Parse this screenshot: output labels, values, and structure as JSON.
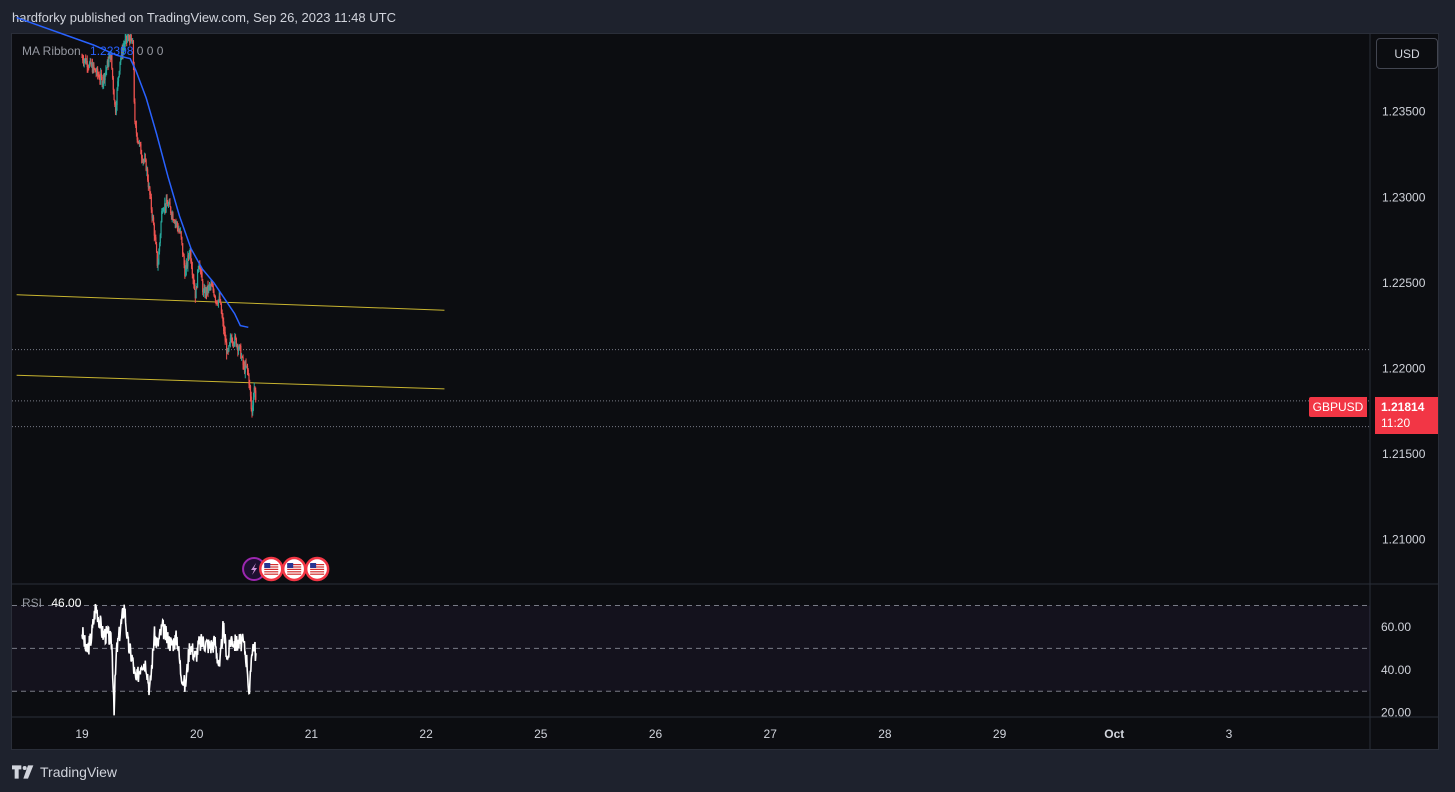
{
  "header": {
    "published": "hardforky published on TradingView.com, Sep 26, 2023 11:48 UTC"
  },
  "toolbar": {
    "currency": "USD"
  },
  "legend": {
    "ma_name": "MA Ribbon",
    "ma_value": "1.22398",
    "ma_extra": "0  0  0",
    "rsi_name": "RSI",
    "rsi_value": "46.00"
  },
  "symbol": {
    "name": "GBPUSD",
    "last_price": "1.21814",
    "countdown": "11:20"
  },
  "footer": {
    "brand": "TradingView"
  },
  "colors": {
    "up": "#26a69a",
    "down": "#ef5350",
    "ma": "#2962ff",
    "trend": "#c8b430",
    "badge": "#f23645"
  },
  "chart_data": {
    "type": "candlestick",
    "price_axis": {
      "ticks": [
        "1.23500",
        "1.23000",
        "1.22500",
        "1.22000",
        "1.21500",
        "1.21000"
      ],
      "ylim": [
        1.2074,
        1.2396
      ]
    },
    "rsi_axis": {
      "ticks": [
        "60.00",
        "40.00",
        "20.00"
      ],
      "levels": [
        70,
        50,
        30
      ],
      "ylim": [
        18,
        80
      ]
    },
    "time_axis": {
      "labels": [
        "19",
        "20",
        "21",
        "22",
        "25",
        "26",
        "27",
        "28",
        "29",
        "Oct",
        "3"
      ],
      "bold": [
        "Oct"
      ]
    },
    "price_path": [
      [
        0,
        1.2382
      ],
      [
        0.1,
        1.2375
      ],
      [
        0.18,
        1.2368
      ],
      [
        0.25,
        1.2384
      ],
      [
        0.29,
        1.235
      ],
      [
        0.33,
        1.238
      ],
      [
        0.37,
        1.239
      ],
      [
        0.41,
        1.2394
      ],
      [
        0.445,
        1.2388
      ],
      [
        0.46,
        1.2342
      ],
      [
        0.52,
        1.2325
      ],
      [
        0.56,
        1.2318
      ],
      [
        0.63,
        1.228
      ],
      [
        0.66,
        1.2259
      ],
      [
        0.7,
        1.2295
      ],
      [
        0.75,
        1.2296
      ],
      [
        0.82,
        1.2285
      ],
      [
        0.86,
        1.2278
      ],
      [
        0.9,
        1.2255
      ],
      [
        0.94,
        1.227
      ],
      [
        0.99,
        1.2242
      ],
      [
        1.02,
        1.2264
      ],
      [
        1.06,
        1.2243
      ],
      [
        1.12,
        1.2248
      ],
      [
        1.15,
        1.2245
      ],
      [
        1.17,
        1.224
      ],
      [
        1.2,
        1.224
      ],
      [
        1.23,
        1.2225
      ],
      [
        1.27,
        1.2207
      ],
      [
        1.3,
        1.2218
      ],
      [
        1.34,
        1.2216
      ],
      [
        1.38,
        1.221
      ],
      [
        1.41,
        1.22
      ],
      [
        1.44,
        1.22
      ],
      [
        1.46,
        1.2191
      ],
      [
        1.48,
        1.2172
      ],
      [
        1.5,
        1.219
      ],
      [
        1.52,
        1.2181
      ]
    ],
    "ma_series": [
      [
        -0.57,
        1.2405
      ],
      [
        0.1,
        1.2389
      ],
      [
        0.3,
        1.2383
      ],
      [
        0.42,
        1.2381
      ],
      [
        0.47,
        1.2374
      ],
      [
        0.56,
        1.2358
      ],
      [
        0.65,
        1.2337
      ],
      [
        0.75,
        1.2312
      ],
      [
        0.85,
        1.2289
      ],
      [
        0.95,
        1.227
      ],
      [
        1.05,
        1.2258
      ],
      [
        1.15,
        1.225
      ],
      [
        1.25,
        1.224
      ],
      [
        1.33,
        1.2232
      ],
      [
        1.38,
        1.2225
      ],
      [
        1.45,
        1.2224
      ]
    ],
    "trendlines": [
      [
        [
          -0.57,
          1.2243
        ],
        [
          3.16,
          1.2234
        ]
      ],
      [
        [
          -0.57,
          1.2196
        ],
        [
          3.16,
          1.2188
        ]
      ]
    ],
    "h_levels": [
      1.2211,
      1.2181,
      1.2166
    ],
    "rsi_path": [
      [
        0,
        58
      ],
      [
        0.04,
        48
      ],
      [
        0.08,
        55
      ],
      [
        0.12,
        70
      ],
      [
        0.18,
        57
      ],
      [
        0.23,
        56
      ],
      [
        0.26,
        52
      ],
      [
        0.28,
        23
      ],
      [
        0.3,
        48
      ],
      [
        0.33,
        58
      ],
      [
        0.37,
        70
      ],
      [
        0.4,
        52
      ],
      [
        0.44,
        45
      ],
      [
        0.47,
        34
      ],
      [
        0.52,
        44
      ],
      [
        0.56,
        43
      ],
      [
        0.59,
        30
      ],
      [
        0.63,
        56
      ],
      [
        0.66,
        52
      ],
      [
        0.7,
        60
      ],
      [
        0.74,
        55
      ],
      [
        0.78,
        52
      ],
      [
        0.83,
        55
      ],
      [
        0.86,
        40
      ],
      [
        0.9,
        32
      ],
      [
        0.94,
        52
      ],
      [
        0.99,
        46
      ],
      [
        1.02,
        52
      ],
      [
        1.06,
        53
      ],
      [
        1.12,
        51
      ],
      [
        1.16,
        53
      ],
      [
        1.2,
        40
      ],
      [
        1.23,
        60
      ],
      [
        1.27,
        45
      ],
      [
        1.3,
        55
      ],
      [
        1.34,
        52
      ],
      [
        1.38,
        53
      ],
      [
        1.41,
        52
      ],
      [
        1.44,
        43
      ],
      [
        1.46,
        26
      ],
      [
        1.48,
        50
      ],
      [
        1.5,
        52
      ],
      [
        1.52,
        46
      ]
    ],
    "events": [
      {
        "x": 1.5,
        "icon": "lightning-icon"
      },
      {
        "x": 1.65,
        "icon": "us-flag-icon"
      },
      {
        "x": 1.85,
        "icon": "us-flag-icon"
      },
      {
        "x": 2.05,
        "icon": "us-flag-icon"
      }
    ]
  }
}
